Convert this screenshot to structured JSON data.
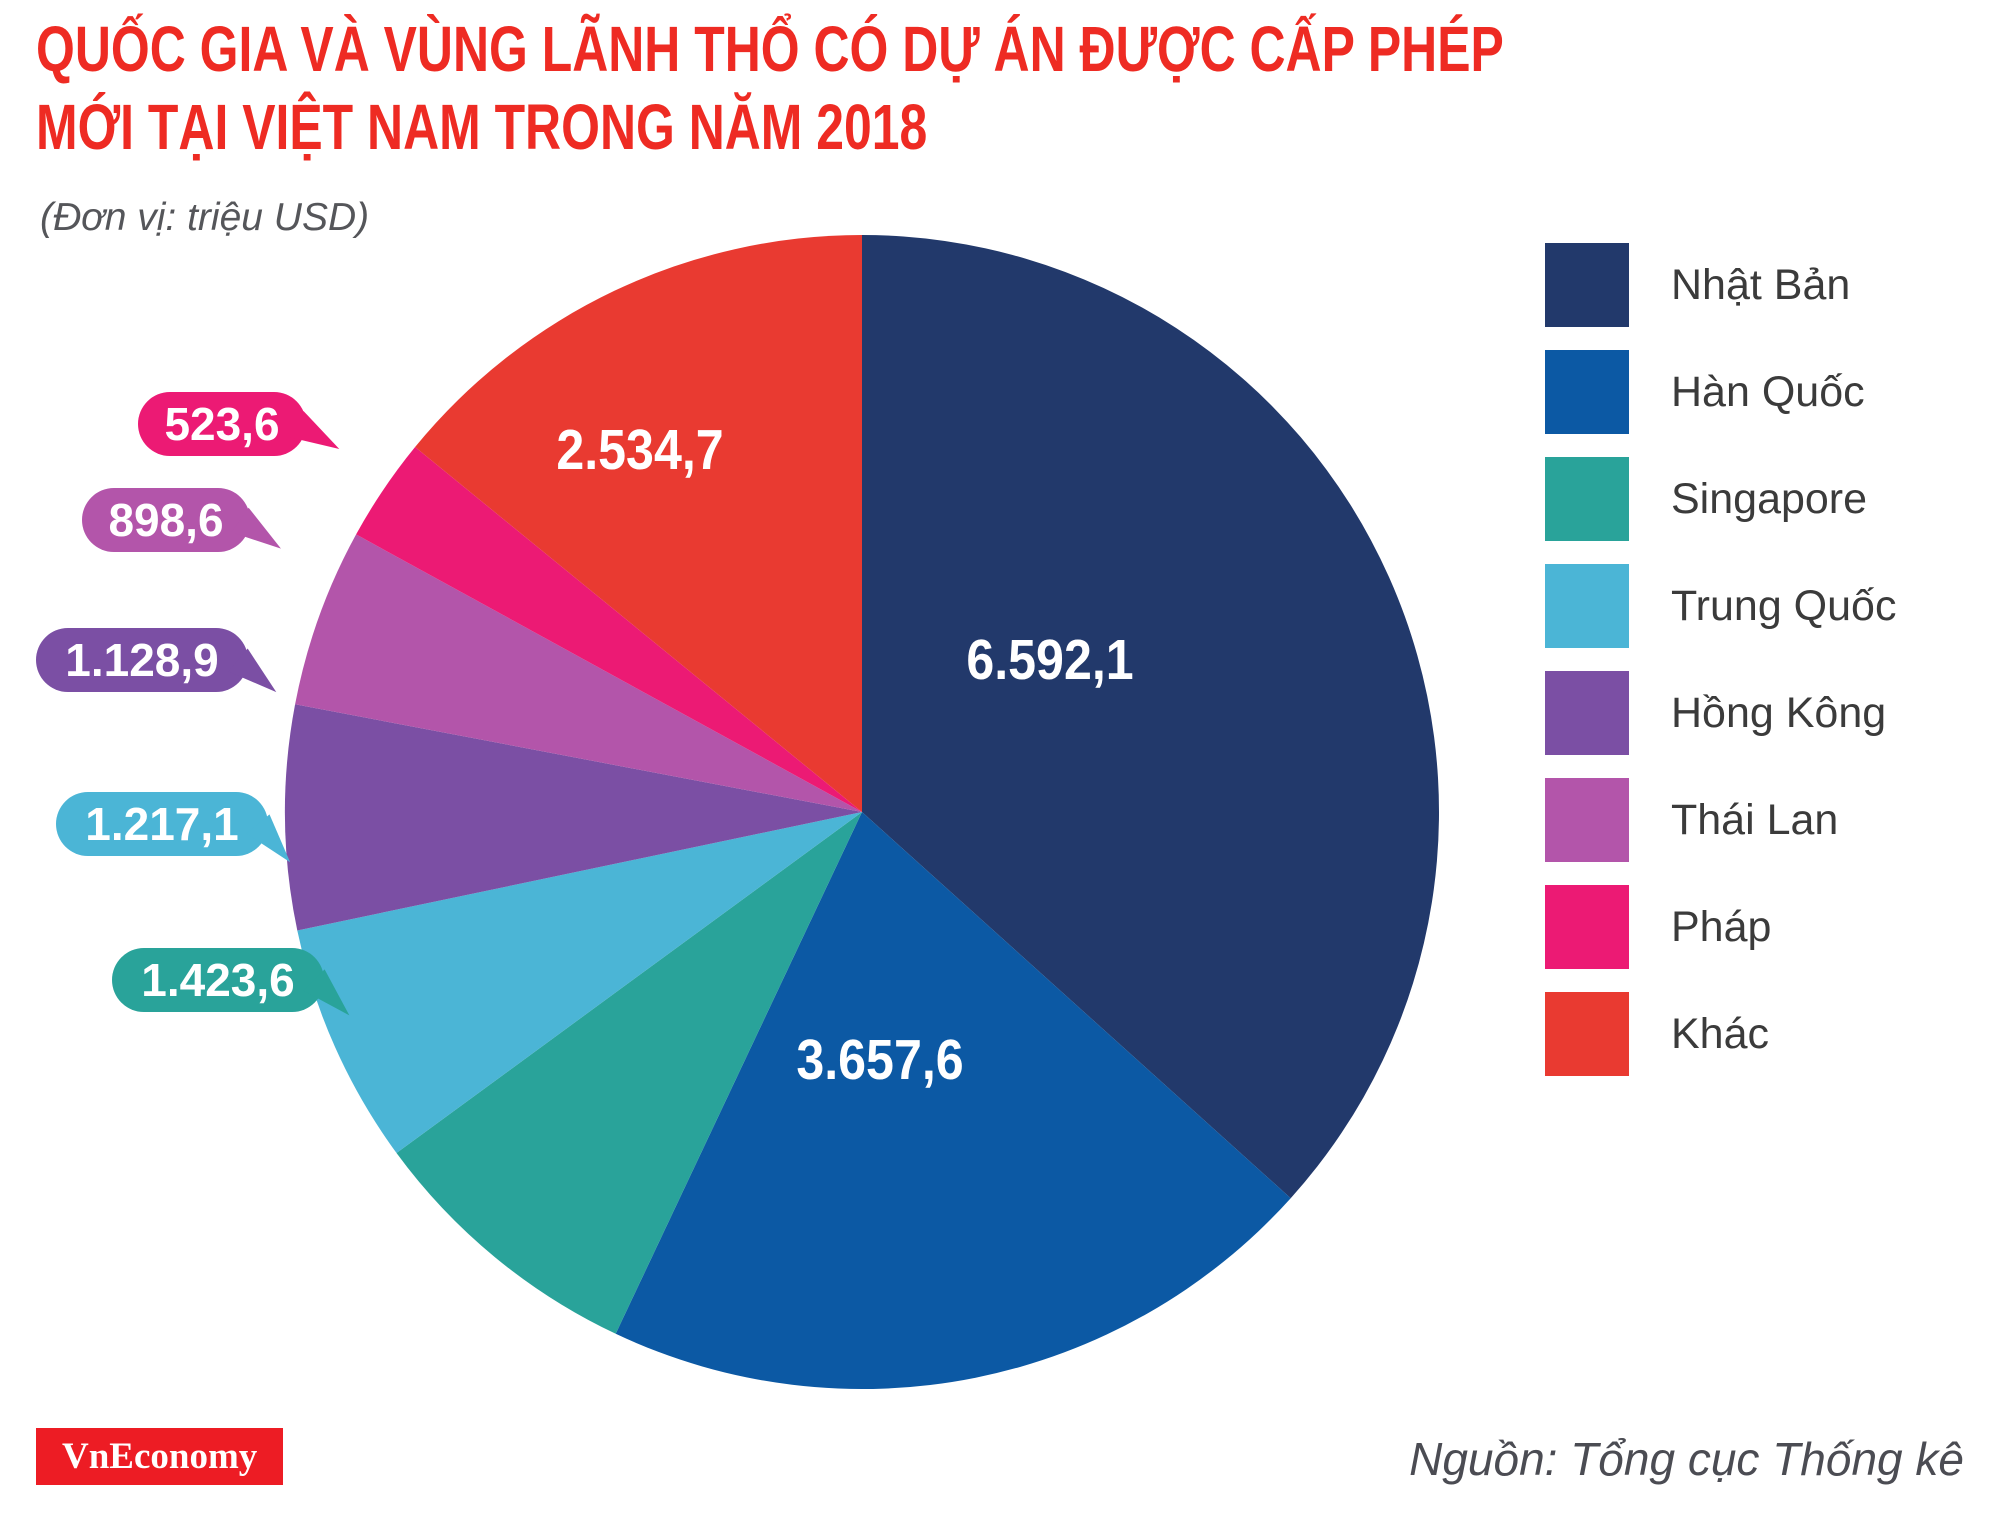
{
  "chart_data": {
    "type": "pie",
    "title": "QUỐC GIA VÀ VÙNG LÃNH THỔ CÓ DỰ ÁN ĐƯỢC CẤP PHÉP MỚI TẠI VIỆT NAM TRONG NĂM 2018",
    "unit_note": "(Đơn vị: triệu USD)",
    "unit": "triệu USD",
    "start_angle_deg": 0,
    "direction": "clockwise",
    "legend_position": "right",
    "slices": [
      {
        "label": "Nhật Bản",
        "value": 6592.1,
        "display": "6.592,1",
        "color": "#22396B",
        "label_style": "inside"
      },
      {
        "label": "Hàn Quốc",
        "value": 3657.6,
        "display": "3.657,6",
        "color": "#0C59A4",
        "label_style": "inside"
      },
      {
        "label": "Singapore",
        "value": 1423.6,
        "display": "1.423,6",
        "color": "#29A39A",
        "label_style": "callout"
      },
      {
        "label": "Trung Quốc",
        "value": 1217.1,
        "display": "1.217,1",
        "color": "#4BB5D6",
        "label_style": "callout"
      },
      {
        "label": "Hồng Kông",
        "value": 1128.9,
        "display": "1.128,9",
        "color": "#7B4FA4",
        "label_style": "callout"
      },
      {
        "label": "Thái Lan",
        "value": 898.6,
        "display": "898,6",
        "color": "#B355AA",
        "label_style": "callout"
      },
      {
        "label": "Pháp",
        "value": 523.6,
        "display": "523,6",
        "color": "#EC1A74",
        "label_style": "callout"
      },
      {
        "label": "Khác",
        "value": 2534.7,
        "display": "2.534,7",
        "color": "#E93A31",
        "label_style": "inside"
      }
    ]
  },
  "footer": {
    "brand": "VnEconomy",
    "source": "Nguồn: Tổng cục Thống kê"
  }
}
